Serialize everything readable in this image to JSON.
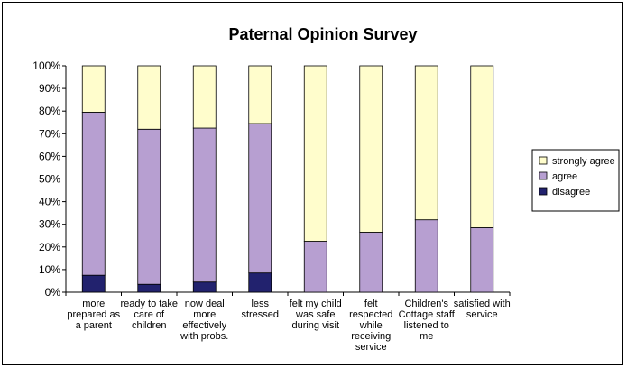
{
  "chart_data": {
    "type": "bar",
    "stacked": true,
    "percent": true,
    "title": "Paternal Opinion Survey",
    "xlabel": "",
    "ylabel": "",
    "ylim": [
      0,
      100
    ],
    "yticks": [
      "0%",
      "10%",
      "20%",
      "30%",
      "40%",
      "50%",
      "60%",
      "70%",
      "80%",
      "90%",
      "100%"
    ],
    "categories": [
      [
        "more",
        "prepared as",
        "a parent"
      ],
      [
        "ready to take",
        "care of",
        "children"
      ],
      [
        "now deal",
        "more",
        "effectively",
        "with probs."
      ],
      [
        "less",
        "stressed"
      ],
      [
        "felt my child",
        "was safe",
        "during visit"
      ],
      [
        "felt",
        "respected",
        "while",
        "receiving",
        "service"
      ],
      [
        "Children's",
        "Cottage staff",
        "listened to",
        "me"
      ],
      [
        "satisfied with",
        "service"
      ]
    ],
    "series": [
      {
        "name": "disagree",
        "color": "#22226e",
        "values": [
          7.5,
          3.5,
          4.5,
          8.5,
          0,
          0,
          0,
          0
        ]
      },
      {
        "name": "agree",
        "color": "#b79fd1",
        "values": [
          72,
          68.5,
          68,
          66,
          22.5,
          26.5,
          32,
          28.5
        ]
      },
      {
        "name": "strongly agree",
        "color": "#fffdcc",
        "values": [
          20.5,
          28,
          27.5,
          25.5,
          77.5,
          73.5,
          68,
          71.5
        ]
      }
    ],
    "legend": {
      "position": "right",
      "order": [
        "strongly agree",
        "agree",
        "disagree"
      ]
    },
    "grid": false
  }
}
